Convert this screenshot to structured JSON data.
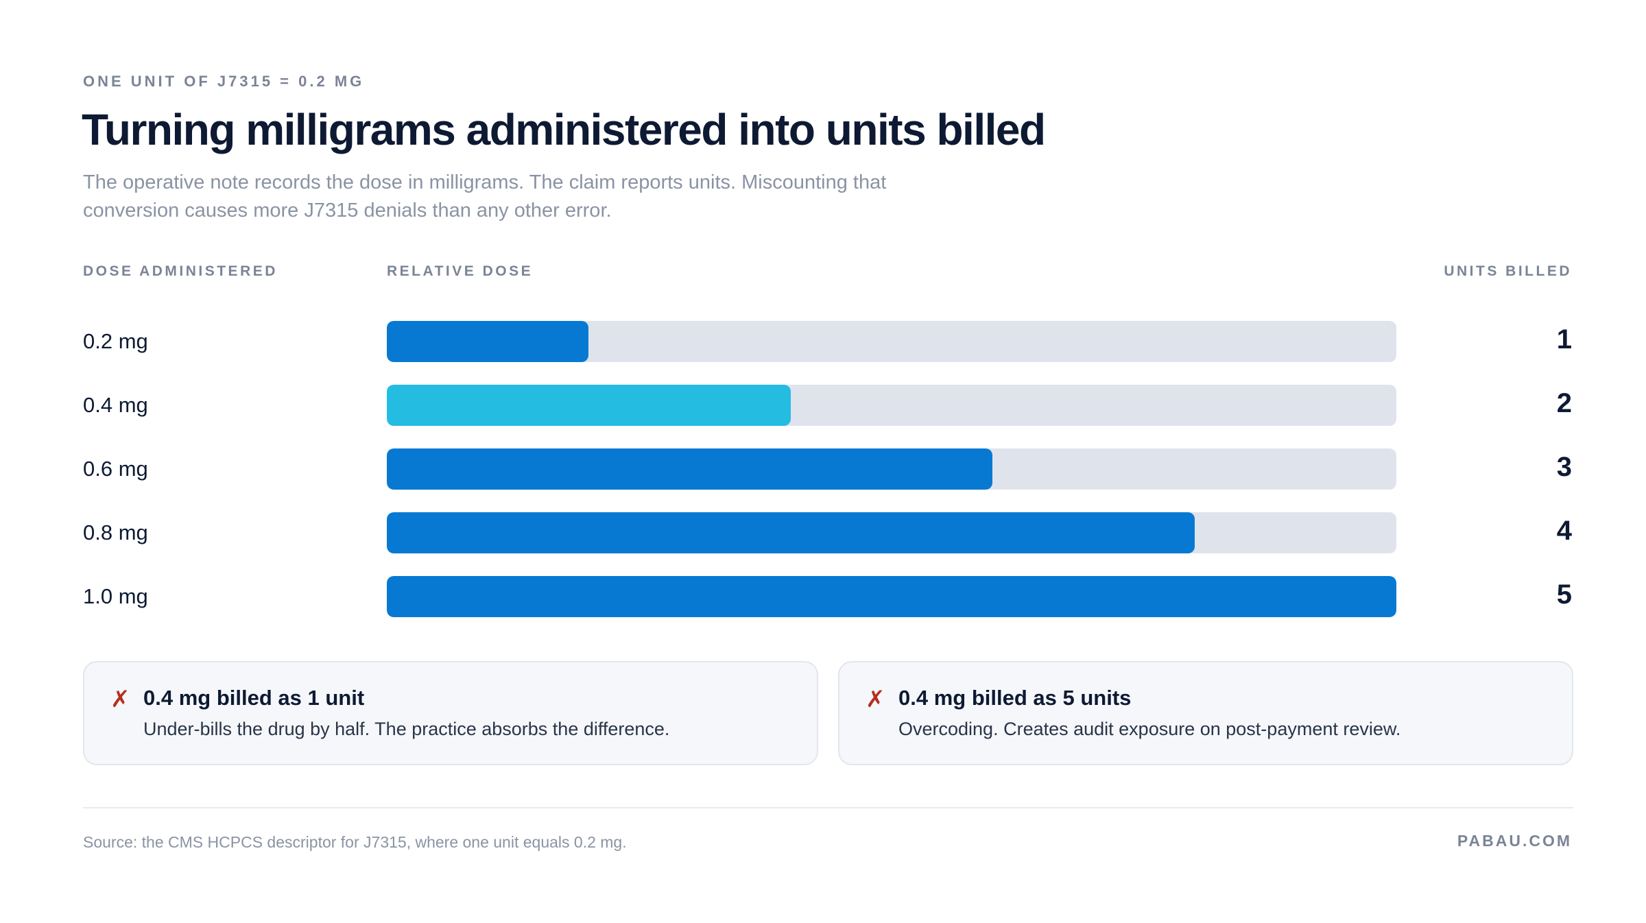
{
  "eyebrow": "ONE UNIT OF J7315 = 0.2 MG",
  "title": "Turning milligrams administered into units billed",
  "subtitle": "The operative note records the dose in milligrams. The claim reports units. Miscounting that conversion causes more J7315 denials than any other error.",
  "columns": {
    "dose": "DOSE ADMINISTERED",
    "relative": "RELATIVE DOSE",
    "units": "UNITS BILLED"
  },
  "colors": {
    "primary_bar": "#0779d3",
    "highlight_bar": "#25bce2",
    "track": "#dfe3ec",
    "error_mark": "#b5301f"
  },
  "chart_data": {
    "type": "bar",
    "orientation": "horizontal",
    "categories": [
      "0.2 mg",
      "0.4 mg",
      "0.6 mg",
      "0.8 mg",
      "1.0 mg"
    ],
    "values": [
      0.2,
      0.4,
      0.6,
      0.8,
      1.0
    ],
    "xlim": [
      0,
      1.0
    ],
    "units_billed": [
      "1",
      "2",
      "3",
      "4",
      "5"
    ],
    "highlight_index": 1,
    "grid": false,
    "legend": "none"
  },
  "cards": [
    {
      "mark": "✗",
      "title": "0.4 mg billed as 1 unit",
      "body": "Under-bills the drug by half. The practice absorbs the difference."
    },
    {
      "mark": "✗",
      "title": "0.4 mg billed as 5 units",
      "body": "Overcoding. Creates audit exposure on post-payment review."
    }
  ],
  "source": "Source: the CMS HCPCS descriptor for J7315, where one unit equals 0.2 mg.",
  "brand": "PABAU.COM"
}
